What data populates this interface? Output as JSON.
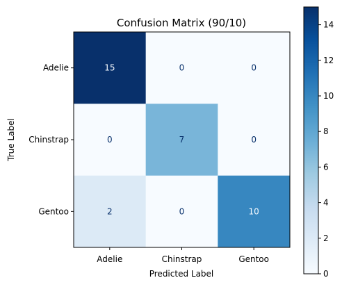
{
  "chart_data": {
    "type": "heatmap",
    "title": "Confusion Matrix (90/10)",
    "xlabel": "Predicted Label",
    "ylabel": "True Label",
    "x_categories": [
      "Adelie",
      "Chinstrap",
      "Gentoo"
    ],
    "y_categories": [
      "Adelie",
      "Chinstrap",
      "Gentoo"
    ],
    "values": [
      [
        15,
        0,
        0
      ],
      [
        0,
        7,
        0
      ],
      [
        2,
        0,
        10
      ]
    ],
    "colormap": "Blues",
    "color_range": [
      0,
      15
    ],
    "colorbar_ticks": [
      0,
      2,
      4,
      6,
      8,
      10,
      12,
      14
    ],
    "colors": {
      "low": "#f7fbff",
      "high": "#08306b",
      "text_on_dark": "#f7fbff",
      "text_on_light": "#08306b"
    }
  }
}
